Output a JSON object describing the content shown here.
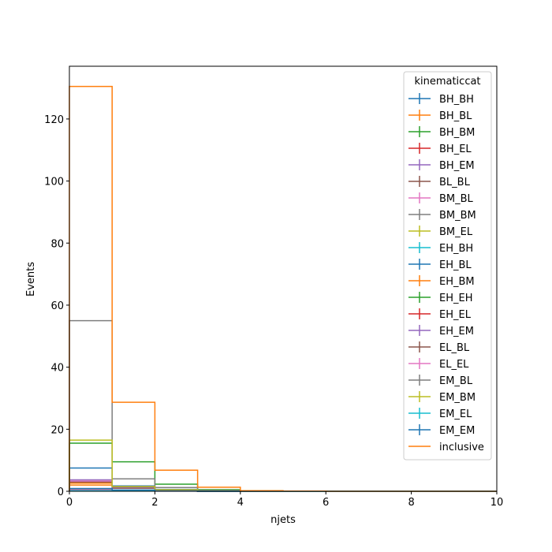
{
  "chart_data": {
    "type": "step-histogram",
    "xlabel": "njets",
    "ylabel": "Events",
    "xlim": [
      0,
      10
    ],
    "ylim": [
      0,
      137
    ],
    "x_ticks": [
      0,
      2,
      4,
      6,
      8,
      10
    ],
    "y_ticks": [
      0,
      20,
      40,
      60,
      80,
      100,
      120
    ],
    "bin_edges": [
      0,
      1,
      2,
      3,
      4,
      5,
      6,
      7,
      8,
      9,
      10
    ],
    "grid": false,
    "legend": {
      "title": "kinematiccat",
      "location": "top-right"
    },
    "series": [
      {
        "name": "BH_BH",
        "color": "#1f77b4",
        "values": [
          0.4,
          0.2,
          0.1,
          0,
          0,
          0,
          0,
          0,
          0,
          0
        ]
      },
      {
        "name": "BH_BL",
        "color": "#ff7f0e",
        "values": [
          2.6,
          1.2,
          0.4,
          0.1,
          0,
          0,
          0,
          0,
          0,
          0
        ]
      },
      {
        "name": "BH_BM",
        "color": "#2ca02c",
        "values": [
          0.5,
          0.3,
          0.1,
          0,
          0,
          0,
          0,
          0,
          0,
          0
        ]
      },
      {
        "name": "BH_EL",
        "color": "#d62728",
        "values": [
          0.3,
          0.1,
          0.05,
          0,
          0,
          0,
          0,
          0,
          0,
          0
        ]
      },
      {
        "name": "BH_EM",
        "color": "#9467bd",
        "values": [
          0.2,
          0.1,
          0.05,
          0,
          0,
          0,
          0,
          0,
          0,
          0
        ]
      },
      {
        "name": "BL_BL",
        "color": "#8c564b",
        "values": [
          3.0,
          1.0,
          0.3,
          0.1,
          0,
          0,
          0,
          0,
          0,
          0
        ]
      },
      {
        "name": "BM_BL",
        "color": "#e377c2",
        "values": [
          3.3,
          1.5,
          0.5,
          0.1,
          0,
          0,
          0,
          0,
          0,
          0
        ]
      },
      {
        "name": "BM_BM",
        "color": "#7f7f7f",
        "values": [
          0.8,
          0.3,
          0.1,
          0,
          0,
          0,
          0,
          0,
          0,
          0
        ]
      },
      {
        "name": "BM_EL",
        "color": "#bcbd22",
        "values": [
          0.3,
          0.1,
          0.05,
          0,
          0,
          0,
          0,
          0,
          0,
          0
        ]
      },
      {
        "name": "EH_BH",
        "color": "#17becf",
        "values": [
          0.2,
          0.1,
          0.05,
          0,
          0,
          0,
          0,
          0,
          0,
          0
        ]
      },
      {
        "name": "EH_BL",
        "color": "#1f77b4",
        "values": [
          7.5,
          1.7,
          0.6,
          0.1,
          0,
          0,
          0,
          0,
          0,
          0
        ]
      },
      {
        "name": "EH_BM",
        "color": "#ff7f0e",
        "values": [
          2.0,
          1.5,
          0.4,
          0.1,
          0,
          0,
          0,
          0,
          0,
          0
        ]
      },
      {
        "name": "EH_EH",
        "color": "#2ca02c",
        "values": [
          15.5,
          9.5,
          2.3,
          0.5,
          0,
          0,
          0,
          0,
          0,
          0
        ]
      },
      {
        "name": "EH_EL",
        "color": "#d62728",
        "values": [
          0.3,
          0.1,
          0.05,
          0,
          0,
          0,
          0,
          0,
          0,
          0
        ]
      },
      {
        "name": "EH_EM",
        "color": "#9467bd",
        "values": [
          3.7,
          1.3,
          0.4,
          0.1,
          0,
          0,
          0,
          0,
          0,
          0
        ]
      },
      {
        "name": "EL_BL",
        "color": "#8c564b",
        "values": [
          0.6,
          0.2,
          0.1,
          0,
          0,
          0,
          0,
          0,
          0,
          0
        ]
      },
      {
        "name": "EL_EL",
        "color": "#e377c2",
        "values": [
          0.4,
          0.2,
          0.1,
          0,
          0,
          0,
          0,
          0,
          0,
          0
        ]
      },
      {
        "name": "EM_BL",
        "color": "#7f7f7f",
        "values": [
          55,
          4.0,
          1.2,
          0.3,
          0,
          0,
          0,
          0,
          0,
          0
        ]
      },
      {
        "name": "EM_BM",
        "color": "#bcbd22",
        "values": [
          16.5,
          1.5,
          0.5,
          0.1,
          0,
          0,
          0,
          0,
          0,
          0
        ]
      },
      {
        "name": "EM_EL",
        "color": "#17becf",
        "values": [
          0.2,
          0.1,
          0.05,
          0,
          0,
          0,
          0,
          0,
          0,
          0
        ]
      },
      {
        "name": "EM_EM",
        "color": "#1f77b4",
        "values": [
          0.9,
          0.4,
          0.1,
          0,
          0,
          0,
          0,
          0,
          0,
          0
        ]
      },
      {
        "name": "inclusive",
        "color": "#ff7f0e",
        "values": [
          130.5,
          28.7,
          6.8,
          1.3,
          0.2,
          0.05,
          0,
          0,
          0,
          0
        ]
      }
    ]
  }
}
